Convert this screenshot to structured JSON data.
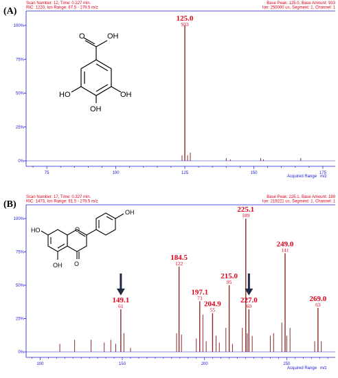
{
  "panels": [
    {
      "label": "(A)",
      "header_left_1": "Scan Number: 12, Time: 0.227 min.",
      "header_left_2": "RIC: 1220, Ion Range: 67.5 - 179.5 m/z",
      "header_right_1": "Base Peak: 125.0, Base Amount: 933",
      "header_right_2": "Ion: 250000 us, Segment: 1, Channel: 1",
      "footer_label": "Acquired Range",
      "footer_unit": "m/z",
      "structure_labels": [
        "O",
        "OH",
        "HO",
        "OH",
        "OH"
      ]
    },
    {
      "label": "(B)",
      "header_left_1": "Scan Number: 17, Time: 0.327 min.",
      "header_left_2": "RIC: 1473, Ion Range: 91.5 - 279.5 m/z",
      "header_right_1": "Base Peak: 225.1, Base Amount: 189",
      "header_right_2": "Ion: 219221 us, Segment: 1, Channel: 1",
      "footer_label": "Acquired Range",
      "footer_unit": "m/z",
      "structure_labels": [
        "OH",
        "HO",
        "O",
        "OH",
        "O"
      ]
    }
  ],
  "colors": {
    "axis": "#1a1ad0",
    "peak": "#8b2a2a",
    "label": "#e0001b",
    "arrow": "#1f2a44"
  },
  "chart_data": [
    {
      "type": "bar",
      "xlim": [
        67.5,
        179.5
      ],
      "ylim": [
        0,
        100
      ],
      "xticks": [
        75,
        100,
        125,
        150,
        175
      ],
      "yticks": [
        "0%",
        "25%",
        "50%",
        "75%",
        "100%"
      ],
      "peaks": [
        {
          "x": 124.0,
          "y": 4
        },
        {
          "x": 125.0,
          "y": 100,
          "label": "125.0",
          "sub": "933"
        },
        {
          "x": 126.0,
          "y": 4
        },
        {
          "x": 127.0,
          "y": 6
        },
        {
          "x": 140.0,
          "y": 2
        },
        {
          "x": 141.5,
          "y": 1
        },
        {
          "x": 152.5,
          "y": 2
        },
        {
          "x": 153.5,
          "y": 1
        },
        {
          "x": 167.0,
          "y": 2
        }
      ]
    },
    {
      "type": "bar",
      "xlim": [
        91.5,
        279.5
      ],
      "ylim": [
        0,
        100
      ],
      "xticks": [
        100,
        150,
        200,
        250
      ],
      "yticks": [
        "0%",
        "25%",
        "50%",
        "75%",
        "100%"
      ],
      "peaks": [
        {
          "x": 112,
          "y": 6
        },
        {
          "x": 121,
          "y": 9
        },
        {
          "x": 131,
          "y": 9
        },
        {
          "x": 139,
          "y": 7
        },
        {
          "x": 143,
          "y": 9
        },
        {
          "x": 146,
          "y": 6
        },
        {
          "x": 149.1,
          "y": 32,
          "label": "149.1",
          "sub": "61"
        },
        {
          "x": 151,
          "y": 14
        },
        {
          "x": 155,
          "y": 3
        },
        {
          "x": 183,
          "y": 14
        },
        {
          "x": 184.5,
          "y": 64,
          "label": "184.5",
          "sub": "122"
        },
        {
          "x": 186,
          "y": 13
        },
        {
          "x": 195,
          "y": 10
        },
        {
          "x": 197.1,
          "y": 38,
          "label": "197.1",
          "sub": "73"
        },
        {
          "x": 199,
          "y": 28
        },
        {
          "x": 201,
          "y": 8
        },
        {
          "x": 204.9,
          "y": 29,
          "label": "204.9",
          "sub": "55"
        },
        {
          "x": 207,
          "y": 12
        },
        {
          "x": 209,
          "y": 7
        },
        {
          "x": 213,
          "y": 18
        },
        {
          "x": 215.0,
          "y": 50,
          "label": "215.0",
          "sub": "95"
        },
        {
          "x": 217,
          "y": 6
        },
        {
          "x": 223,
          "y": 18
        },
        {
          "x": 225.1,
          "y": 100,
          "label": "225.1",
          "sub": "189"
        },
        {
          "x": 226,
          "y": 14
        },
        {
          "x": 227.0,
          "y": 32,
          "label": "227.0",
          "sub": "60"
        },
        {
          "x": 229,
          "y": 12
        },
        {
          "x": 240,
          "y": 12
        },
        {
          "x": 242,
          "y": 14
        },
        {
          "x": 247,
          "y": 22
        },
        {
          "x": 249.0,
          "y": 74,
          "label": "249.0",
          "sub": "141"
        },
        {
          "x": 250,
          "y": 12
        },
        {
          "x": 252,
          "y": 18
        },
        {
          "x": 267,
          "y": 8
        },
        {
          "x": 269.0,
          "y": 33,
          "label": "269.0",
          "sub": "63"
        },
        {
          "x": 271,
          "y": 8
        }
      ],
      "arrows": [
        149.1,
        227.0
      ]
    }
  ]
}
